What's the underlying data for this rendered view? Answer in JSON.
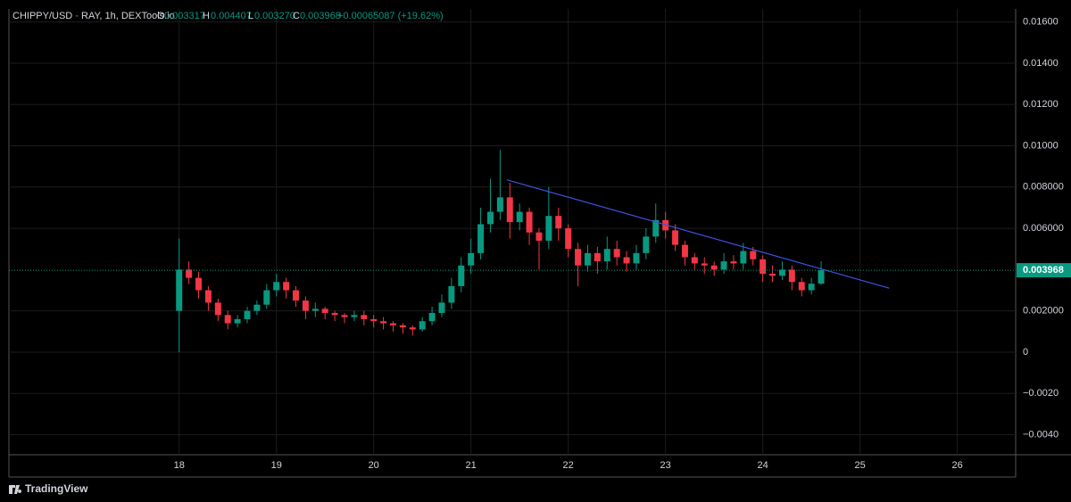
{
  "header": {
    "symbol": "CHIPPY/USD · RAY, 1h, DEXTools.io",
    "o_label": "O",
    "o": "0.003317",
    "h_label": "H",
    "h": "0.004407",
    "l_label": "L",
    "l": "0.003270",
    "c_label": "C",
    "c": "0.003968",
    "change": "+0.00065087 (+19.62%)"
  },
  "footer": {
    "brand": "TradingView"
  },
  "chart_data": {
    "type": "candlestick",
    "x": [
      18,
      18.1,
      18.2,
      18.3,
      18.4,
      18.5,
      18.6,
      18.7,
      18.8,
      18.9,
      19,
      19.1,
      19.2,
      19.3,
      19.4,
      19.5,
      19.6,
      19.7,
      19.8,
      19.9,
      20,
      20.1,
      20.2,
      20.3,
      20.4,
      20.5,
      20.6,
      20.7,
      20.8,
      20.9,
      21,
      21.1,
      21.2,
      21.3,
      21.4,
      21.5,
      21.6,
      21.7,
      21.8,
      21.9,
      22,
      22.1,
      22.2,
      22.3,
      22.4,
      22.5,
      22.6,
      22.7,
      22.8,
      22.9,
      23,
      23.1,
      23.2,
      23.3,
      23.4,
      23.5,
      23.6,
      23.7,
      23.8,
      23.9,
      24,
      24.1,
      24.2,
      24.3,
      24.4,
      24.5,
      24.6
    ],
    "open": [
      0.002,
      0.004,
      0.0036,
      0.003,
      0.0024,
      0.0018,
      0.0014,
      0.0016,
      0.002,
      0.0023,
      0.003,
      0.0034,
      0.003,
      0.0025,
      0.002,
      0.0021,
      0.0019,
      0.0018,
      0.0017,
      0.0018,
      0.0016,
      0.0015,
      0.0014,
      0.0013,
      0.0012,
      0.0011,
      0.0015,
      0.0019,
      0.0024,
      0.0032,
      0.0042,
      0.0048,
      0.0062,
      0.0068,
      0.0075,
      0.0063,
      0.0068,
      0.0058,
      0.0054,
      0.0066,
      0.006,
      0.005,
      0.0042,
      0.0048,
      0.0044,
      0.005,
      0.0046,
      0.0043,
      0.0048,
      0.0056,
      0.0064,
      0.0059,
      0.0052,
      0.0046,
      0.0043,
      0.0042,
      0.004,
      0.0044,
      0.0043,
      0.0049,
      0.0045,
      0.0038,
      0.0037,
      0.004,
      0.0034,
      0.003,
      0.003317
    ],
    "high": [
      0.0055,
      0.0044,
      0.0039,
      0.0032,
      0.0026,
      0.002,
      0.0018,
      0.0022,
      0.0025,
      0.0033,
      0.0038,
      0.0036,
      0.0032,
      0.0027,
      0.0024,
      0.0022,
      0.002,
      0.0019,
      0.002,
      0.002,
      0.0018,
      0.0017,
      0.0015,
      0.0014,
      0.0013,
      0.0017,
      0.0022,
      0.0028,
      0.0036,
      0.0046,
      0.0055,
      0.007,
      0.0084,
      0.0098,
      0.0082,
      0.0072,
      0.007,
      0.006,
      0.008,
      0.007,
      0.0062,
      0.0053,
      0.0052,
      0.0051,
      0.0056,
      0.0054,
      0.0049,
      0.0052,
      0.006,
      0.0072,
      0.0068,
      0.0062,
      0.0054,
      0.0048,
      0.0046,
      0.0044,
      0.0048,
      0.0047,
      0.0053,
      0.0051,
      0.0047,
      0.0042,
      0.0044,
      0.0042,
      0.0036,
      0.0036,
      0.004407
    ],
    "low": [
      0.0,
      0.0033,
      0.0026,
      0.002,
      0.0015,
      0.0011,
      0.0012,
      0.0014,
      0.0018,
      0.0021,
      0.0027,
      0.0026,
      0.0022,
      0.0016,
      0.0017,
      0.0016,
      0.0015,
      0.0014,
      0.0015,
      0.0013,
      0.0012,
      0.0011,
      0.001,
      0.0009,
      0.0008,
      0.001,
      0.0013,
      0.0017,
      0.0021,
      0.0029,
      0.0038,
      0.0045,
      0.0058,
      0.0064,
      0.0055,
      0.0059,
      0.0052,
      0.004,
      0.005,
      0.0054,
      0.0046,
      0.0032,
      0.0039,
      0.0038,
      0.004,
      0.0042,
      0.0039,
      0.004,
      0.0045,
      0.0053,
      0.0055,
      0.0049,
      0.0042,
      0.004,
      0.0038,
      0.0037,
      0.0038,
      0.004,
      0.004,
      0.0042,
      0.0034,
      0.0034,
      0.0035,
      0.003,
      0.0027,
      0.0028,
      0.00327
    ],
    "close": [
      0.004,
      0.0036,
      0.003,
      0.0024,
      0.0018,
      0.0014,
      0.0016,
      0.002,
      0.0023,
      0.003,
      0.0034,
      0.003,
      0.0025,
      0.002,
      0.0021,
      0.0019,
      0.0018,
      0.0017,
      0.0018,
      0.0016,
      0.0015,
      0.0014,
      0.0013,
      0.0012,
      0.0011,
      0.0015,
      0.0019,
      0.0024,
      0.0032,
      0.0042,
      0.0048,
      0.0062,
      0.0068,
      0.0075,
      0.0063,
      0.0068,
      0.0058,
      0.0054,
      0.0066,
      0.006,
      0.005,
      0.0042,
      0.0048,
      0.0044,
      0.005,
      0.0046,
      0.0043,
      0.0048,
      0.0056,
      0.0064,
      0.0059,
      0.0052,
      0.0046,
      0.0043,
      0.0042,
      0.004,
      0.0044,
      0.0043,
      0.0049,
      0.0045,
      0.0038,
      0.0037,
      0.004,
      0.0034,
      0.003,
      0.003317,
      0.003968
    ],
    "up_color": "#089981",
    "down_color": "#f23645",
    "xlim": [
      16.25,
      26.6
    ],
    "xticks": [
      18,
      19,
      20,
      21,
      22,
      23,
      24,
      25,
      26
    ],
    "ylim": [
      -0.00497,
      0.01663
    ],
    "yticks": [
      {
        "value": -0.004,
        "label": "−0.0040"
      },
      {
        "value": -0.002,
        "label": "−0.0020"
      },
      0,
      {
        "value": 0.002,
        "label": "0.002000"
      },
      {
        "value": 0.006,
        "label": "0.006000"
      },
      {
        "value": 0.008,
        "label": "0.008000"
      },
      {
        "value": 0.01,
        "label": "0.01000"
      },
      {
        "value": 0.012,
        "label": "0.01200"
      },
      {
        "value": 0.014,
        "label": "0.01400"
      },
      {
        "value": 0.016,
        "label": "0.01600"
      }
    ],
    "grid": true,
    "last_price": 0.003968,
    "last_price_color": "#089981",
    "trendline": {
      "x": [
        21.37,
        25.3
      ],
      "y": [
        0.00835,
        0.0031
      ],
      "color": "#3f51e0"
    }
  }
}
